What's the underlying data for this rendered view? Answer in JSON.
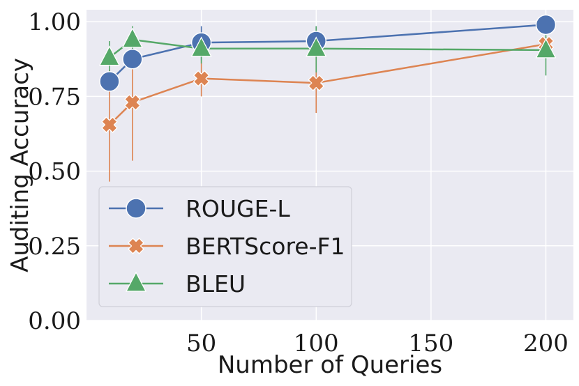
{
  "chart_data": {
    "type": "line",
    "xlabel": "Number of Queries",
    "ylabel": "Auditing Accuracy",
    "xlim": [
      0,
      212
    ],
    "ylim": [
      0,
      1.04
    ],
    "xticks": [
      50,
      100,
      150,
      200
    ],
    "xtick_labels": [
      "50",
      "100",
      "150",
      "200"
    ],
    "yticks": [
      0,
      0.25,
      0.5,
      0.75,
      1.0
    ],
    "ytick_labels": [
      "0.00",
      "0.25",
      "0.50",
      "0.75",
      "1.00"
    ],
    "grid": true,
    "legend_position": "lower-left",
    "x": [
      10,
      20,
      50,
      100,
      200
    ],
    "series": [
      {
        "name": "ROUGE-L",
        "marker": "circle",
        "color": "#4c72b0",
        "values": [
          0.8,
          0.875,
          0.93,
          0.935,
          0.99
        ],
        "err_low": [
          0.78,
          0.86,
          0.87,
          0.89,
          0.98
        ],
        "err_high": [
          0.82,
          0.89,
          0.985,
          0.985,
          1.0
        ]
      },
      {
        "name": "BERTScore-F1",
        "marker": "x",
        "color": "#dd8452",
        "values": [
          0.655,
          0.73,
          0.81,
          0.795,
          0.925
        ],
        "err_low": [
          0.465,
          0.535,
          0.75,
          0.695,
          0.9
        ],
        "err_high": [
          0.84,
          0.925,
          0.87,
          0.9,
          0.95
        ]
      },
      {
        "name": "BLEU",
        "marker": "triangle",
        "color": "#55a868",
        "values": [
          0.88,
          0.94,
          0.91,
          0.91,
          0.905
        ],
        "err_low": [
          0.83,
          0.895,
          0.86,
          0.83,
          0.82
        ],
        "err_high": [
          0.935,
          0.985,
          0.96,
          0.985,
          0.985
        ]
      }
    ]
  }
}
